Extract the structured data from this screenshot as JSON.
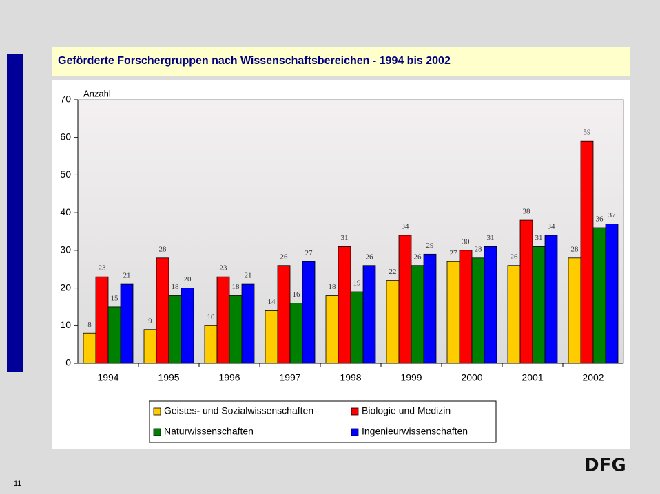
{
  "chart_data": {
    "type": "bar",
    "title": "Geförderte Forschergruppen nach Wissenschaftsbereichen - 1994 bis 2002",
    "y_label": "Anzahl",
    "categories": [
      "1994",
      "1995",
      "1996",
      "1997",
      "1998",
      "1999",
      "2000",
      "2001",
      "2002"
    ],
    "series": [
      {
        "name": "Geistes- und Sozialwissenschaften",
        "color": "#ffcc00",
        "values": [
          8,
          9,
          10,
          14,
          18,
          22,
          27,
          26,
          28
        ]
      },
      {
        "name": "Biologie und Medizin",
        "color": "#ff0000",
        "values": [
          23,
          28,
          23,
          26,
          31,
          34,
          30,
          38,
          59
        ]
      },
      {
        "name": "Naturwissenschaften",
        "color": "#008000",
        "values": [
          15,
          18,
          18,
          16,
          19,
          26,
          28,
          31,
          36
        ]
      },
      {
        "name": "Ingenieurwissenschaften",
        "color": "#0000ff",
        "values": [
          21,
          20,
          21,
          27,
          26,
          29,
          31,
          34,
          37
        ]
      }
    ],
    "ylim": [
      0,
      70
    ],
    "yticks": [
      0,
      10,
      20,
      30,
      40,
      50,
      60,
      70
    ],
    "grid": false,
    "legend": "bottom"
  },
  "logo": "DFG",
  "page_number": "11"
}
